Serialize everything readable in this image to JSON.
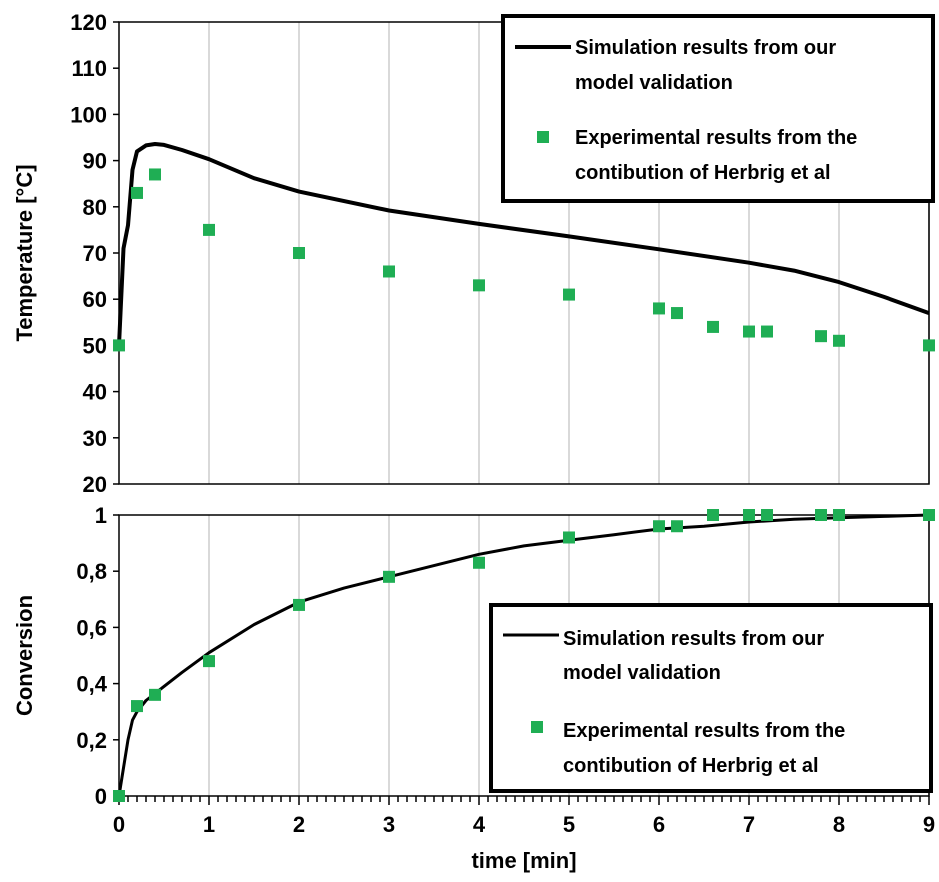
{
  "chart_data": [
    {
      "type": "line",
      "title": "",
      "xlabel": "",
      "ylabel": "Temperature [°C]",
      "xlim": [
        0,
        9
      ],
      "ylim": [
        20,
        120
      ],
      "yticks": [
        20,
        30,
        40,
        50,
        60,
        70,
        80,
        90,
        100,
        110,
        120
      ],
      "ytick_labels": [
        "20",
        "30",
        "40",
        "50",
        "60",
        "70",
        "80",
        "90",
        "100",
        "110",
        "120"
      ],
      "grid": true,
      "legend_position": "top-right",
      "series": [
        {
          "name": "Simulation results from our model validation",
          "kind": "line",
          "color": "#000000",
          "x": [
            0,
            0.05,
            0.1,
            0.15,
            0.2,
            0.3,
            0.4,
            0.5,
            0.7,
            1,
            1.5,
            2,
            3,
            4,
            5,
            6,
            7,
            7.5,
            8,
            8.5,
            9
          ],
          "y": [
            50,
            71,
            76,
            88,
            92,
            93.3,
            93.6,
            93.4,
            92.3,
            90.3,
            86.2,
            83.3,
            79.2,
            76.3,
            73.6,
            70.8,
            67.9,
            66.2,
            63.7,
            60.5,
            57
          ]
        },
        {
          "name": "Experimental results from the contibution of Herbrig et al",
          "kind": "scatter",
          "color": "#1fae54",
          "x": [
            0,
            0.2,
            0.4,
            1,
            2,
            3,
            4,
            5,
            6,
            6.2,
            6.6,
            7,
            7.2,
            7.8,
            8,
            9
          ],
          "y": [
            50,
            83,
            87,
            75,
            70,
            66,
            63,
            61,
            58,
            57,
            54,
            53,
            53,
            52,
            51,
            50
          ]
        }
      ]
    },
    {
      "type": "line",
      "title": "",
      "xlabel": "time [min]",
      "ylabel": "Conversion",
      "xlim": [
        0,
        9
      ],
      "ylim": [
        0,
        1
      ],
      "xticks": [
        0,
        1,
        2,
        3,
        4,
        5,
        6,
        7,
        8,
        9
      ],
      "xtick_labels": [
        "0",
        "1",
        "2",
        "3",
        "4",
        "5",
        "6",
        "7",
        "8",
        "9"
      ],
      "yticks": [
        0,
        0.2,
        0.4,
        0.6,
        0.8,
        1
      ],
      "ytick_labels": [
        "0",
        "0,2",
        "0,4",
        "0,6",
        "0,8",
        "1"
      ],
      "grid": true,
      "legend_position": "bottom-right",
      "series": [
        {
          "name": "Simulation results from our model validation",
          "kind": "line",
          "color": "#000000",
          "x": [
            0,
            0.05,
            0.1,
            0.15,
            0.2,
            0.3,
            0.5,
            0.7,
            1,
            1.5,
            2,
            2.5,
            3,
            3.5,
            4,
            4.5,
            5,
            5.5,
            6,
            6.5,
            7,
            7.5,
            8,
            8.5,
            9
          ],
          "y": [
            0,
            0.1,
            0.2,
            0.27,
            0.3,
            0.34,
            0.39,
            0.44,
            0.51,
            0.61,
            0.69,
            0.74,
            0.78,
            0.82,
            0.86,
            0.89,
            0.91,
            0.93,
            0.95,
            0.96,
            0.975,
            0.985,
            0.99,
            0.995,
            1.0
          ]
        },
        {
          "name": "Experimental results from the contibution of Herbrig et al",
          "kind": "scatter",
          "color": "#1fae54",
          "x": [
            0,
            0.2,
            0.4,
            1,
            2,
            3,
            4,
            5,
            6,
            6.2,
            6.6,
            7,
            7.2,
            7.8,
            8,
            9
          ],
          "y": [
            0,
            0.32,
            0.36,
            0.48,
            0.68,
            0.78,
            0.83,
            0.92,
            0.96,
            0.96,
            1.0,
            1.0,
            1.0,
            1.0,
            1.0,
            1.0
          ]
        }
      ]
    }
  ]
}
